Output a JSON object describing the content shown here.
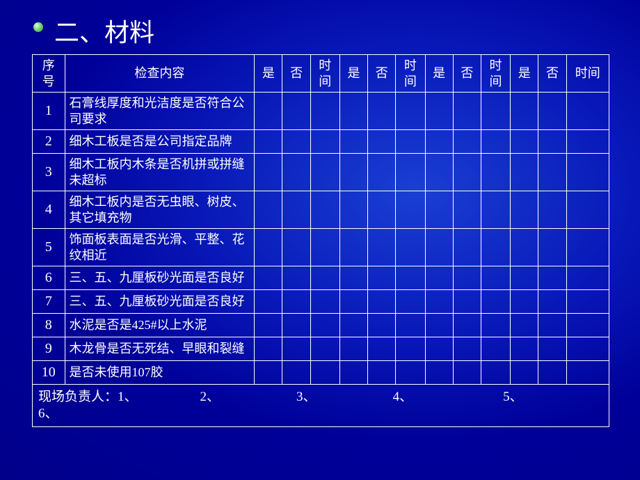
{
  "title": "二、材料",
  "headers": {
    "num": "序号",
    "content": "检查内容",
    "yes": "是",
    "no": "否",
    "time": "时间"
  },
  "rows": [
    {
      "n": "1",
      "text": "石膏线厚度和光洁度是否符合公司要求"
    },
    {
      "n": "2",
      "text": "细木工板是否是公司指定品牌"
    },
    {
      "n": "3",
      "text": "细木工板内木条是否机拼或拼缝未超标"
    },
    {
      "n": "4",
      "text": "细木工板内是否无虫眼、树皮、其它填充物"
    },
    {
      "n": "5",
      "text": "饰面板表面是否光滑、平整、花纹相近"
    },
    {
      "n": "6",
      "text": "三、五、九厘板砂光面是否良好"
    },
    {
      "n": "7",
      "text": "三、五、九厘板砂光面是否良好"
    },
    {
      "n": "8",
      "text": "水泥是否是425#以上水泥"
    },
    {
      "n": "9",
      "text": "木龙骨是否无死结、早眼和裂缝"
    },
    {
      "n": "10",
      "text": "是否未使用107胶"
    }
  ],
  "footer": {
    "label": "现场负责人：",
    "p1": "1、",
    "p2": "2、",
    "p3": "3、",
    "p4": "4、",
    "p5": "5、",
    "p6": "6、"
  },
  "style": {
    "background_gradient": [
      "#1a3fd4",
      "#0818b8",
      "#000099",
      "#000088"
    ],
    "border_color": "#ffffff",
    "text_color": "#ffffff",
    "title_fontsize": 36,
    "cell_fontsize": 18,
    "bullet_gradient": [
      "#e0ffe0",
      "#7fd87f",
      "#2a9a2a"
    ]
  }
}
